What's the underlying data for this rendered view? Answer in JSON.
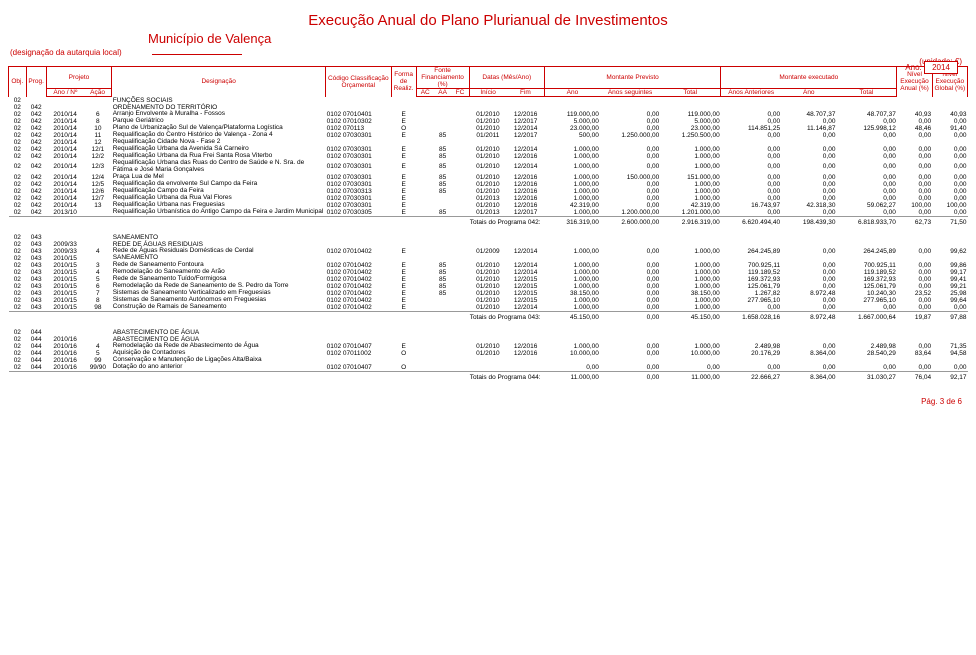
{
  "header": {
    "title": "Execução Anual do Plano Plurianual de Investimentos",
    "municipio": "Município de Valença",
    "designacao_label": "(designação da autarquia local)",
    "ano_label": "Ano:",
    "ano_value": "2014",
    "unidade": "(unidade: €)"
  },
  "columns": {
    "obj": "Obj.",
    "prog": "Prog.",
    "projeto": "Projeto",
    "ano_no": "Ano / Nº",
    "acao": "Ação",
    "designacao": "Designação",
    "codigo": "Código Classificação Orçamental",
    "forma": "Forma de Realiz.",
    "fonte": "Fonte Financiamento (%)",
    "ac": "AC",
    "aa": "AA",
    "fc": "FC",
    "datas": "Datas (Mês/Ano)",
    "inicio": "Início",
    "fim": "Fim",
    "montante_prev": "Montante Previsto",
    "mp_ano": "Ano",
    "mp_seg": "Anos seguintes",
    "mp_total": "Total",
    "montante_exec": "Montante executado",
    "me_ant": "Anos Anteriores",
    "me_ano": "Ano",
    "me_total": "Total",
    "nivel_exec_anual": "Nível Execução Anual (%)",
    "nivel_exec_global": "Nível Execução Global (%)"
  },
  "sections": [
    {
      "header_rows": [
        {
          "obj": "02",
          "prog": "",
          "ano": "",
          "acao": "",
          "des": "FUNÇÕES SOCIAIS"
        },
        {
          "obj": "02",
          "prog": "042",
          "ano": "",
          "acao": "",
          "des": "ORDENAMENTO DO TERRITÓRIO"
        }
      ],
      "rows": [
        {
          "obj": "02",
          "prog": "042",
          "ano": "2010/14",
          "acao": "6",
          "des": "Arranjo Envolvente à Muralha - Fossos",
          "cod": "0102 07010401",
          "forma": "E",
          "ac": "",
          "aa": "",
          "fc": "",
          "ini": "01/2010",
          "fim": "12/2016",
          "p_ano": "119.000,00",
          "p_seg": "0,00",
          "p_tot": "119.000,00",
          "e_ant": "0,00",
          "e_ano": "48.707,37",
          "e_tot": "48.707,37",
          "na": "40,93",
          "ng": "40,93"
        },
        {
          "obj": "02",
          "prog": "042",
          "ano": "2010/14",
          "acao": "8",
          "des": "Parque Geriátrico",
          "cod": "0102 07010302",
          "forma": "E",
          "ac": "",
          "aa": "",
          "fc": "",
          "ini": "01/2010",
          "fim": "12/2017",
          "p_ano": "5.000,00",
          "p_seg": "0,00",
          "p_tot": "5.000,00",
          "e_ant": "0,00",
          "e_ano": "0,00",
          "e_tot": "0,00",
          "na": "0,00",
          "ng": "0,00"
        },
        {
          "obj": "02",
          "prog": "042",
          "ano": "2010/14",
          "acao": "10",
          "des": "Plano de Urbanização Sul de Valença/Plataforma Logística",
          "cod": "0102 070113",
          "forma": "O",
          "ac": "",
          "aa": "",
          "fc": "",
          "ini": "01/2010",
          "fim": "12/2014",
          "p_ano": "23.000,00",
          "p_seg": "0,00",
          "p_tot": "23.000,00",
          "e_ant": "114.851,25",
          "e_ano": "11.146,87",
          "e_tot": "125.998,12",
          "na": "48,46",
          "ng": "91,40"
        },
        {
          "obj": "02",
          "prog": "042",
          "ano": "2010/14",
          "acao": "11",
          "des": "Requalificação do Centro Histórico de Valença - Zona 4",
          "cod": "0102 07030301",
          "forma": "E",
          "ac": "",
          "aa": "85",
          "fc": "",
          "ini": "01/2011",
          "fim": "12/2017",
          "p_ano": "500,00",
          "p_seg": "1.250.000,00",
          "p_tot": "1.250.500,00",
          "e_ant": "0,00",
          "e_ano": "0,00",
          "e_tot": "0,00",
          "na": "0,00",
          "ng": "0,00"
        },
        {
          "obj": "02",
          "prog": "042",
          "ano": "2010/14",
          "acao": "12",
          "des": "Requalificação Cidade Nova - Fase 2",
          "cod": "",
          "forma": "",
          "ac": "",
          "aa": "",
          "fc": "",
          "ini": "",
          "fim": "",
          "p_ano": "",
          "p_seg": "",
          "p_tot": "",
          "e_ant": "",
          "e_ano": "",
          "e_tot": "",
          "na": "",
          "ng": ""
        },
        {
          "obj": "02",
          "prog": "042",
          "ano": "2010/14",
          "acao": "12/1",
          "des": "Requalificação Urbana da Avenida Sá Carneiro",
          "cod": "0102 07030301",
          "forma": "E",
          "ac": "",
          "aa": "85",
          "fc": "",
          "ini": "01/2010",
          "fim": "12/2014",
          "p_ano": "1.000,00",
          "p_seg": "0,00",
          "p_tot": "1.000,00",
          "e_ant": "0,00",
          "e_ano": "0,00",
          "e_tot": "0,00",
          "na": "0,00",
          "ng": "0,00"
        },
        {
          "obj": "02",
          "prog": "042",
          "ano": "2010/14",
          "acao": "12/2",
          "des": "Requalificação Urbana da Rua Frei Santa Rosa Viterbo",
          "cod": "0102 07030301",
          "forma": "E",
          "ac": "",
          "aa": "85",
          "fc": "",
          "ini": "01/2010",
          "fim": "12/2016",
          "p_ano": "1.000,00",
          "p_seg": "0,00",
          "p_tot": "1.000,00",
          "e_ant": "0,00",
          "e_ano": "0,00",
          "e_tot": "0,00",
          "na": "0,00",
          "ng": "0,00"
        },
        {
          "obj": "02",
          "prog": "042",
          "ano": "2010/14",
          "acao": "12/3",
          "des": "Requalificação Urbana das Ruas do Centro de Saúde e N. Sra. de Fátima e José Maria Gonçalves",
          "cod": "0102 07030301",
          "forma": "E",
          "ac": "",
          "aa": "85",
          "fc": "",
          "ini": "01/2010",
          "fim": "12/2014",
          "p_ano": "1.000,00",
          "p_seg": "0,00",
          "p_tot": "1.000,00",
          "e_ant": "0,00",
          "e_ano": "0,00",
          "e_tot": "0,00",
          "na": "0,00",
          "ng": "0,00"
        },
        {
          "obj": "02",
          "prog": "042",
          "ano": "2010/14",
          "acao": "12/4",
          "des": "Praça Lua de Mel",
          "cod": "0102 07030301",
          "forma": "E",
          "ac": "",
          "aa": "85",
          "fc": "",
          "ini": "01/2010",
          "fim": "12/2016",
          "p_ano": "1.000,00",
          "p_seg": "150.000,00",
          "p_tot": "151.000,00",
          "e_ant": "0,00",
          "e_ano": "0,00",
          "e_tot": "0,00",
          "na": "0,00",
          "ng": "0,00"
        },
        {
          "obj": "02",
          "prog": "042",
          "ano": "2010/14",
          "acao": "12/5",
          "des": "Requalificação da envolvente Sul Campo da Feira",
          "cod": "0102 07030301",
          "forma": "E",
          "ac": "",
          "aa": "85",
          "fc": "",
          "ini": "01/2010",
          "fim": "12/2016",
          "p_ano": "1.000,00",
          "p_seg": "0,00",
          "p_tot": "1.000,00",
          "e_ant": "0,00",
          "e_ano": "0,00",
          "e_tot": "0,00",
          "na": "0,00",
          "ng": "0,00"
        },
        {
          "obj": "02",
          "prog": "042",
          "ano": "2010/14",
          "acao": "12/6",
          "des": "Requalificação Campo da Feira",
          "cod": "0102 07030313",
          "forma": "E",
          "ac": "",
          "aa": "85",
          "fc": "",
          "ini": "01/2010",
          "fim": "12/2016",
          "p_ano": "1.000,00",
          "p_seg": "0,00",
          "p_tot": "1.000,00",
          "e_ant": "0,00",
          "e_ano": "0,00",
          "e_tot": "0,00",
          "na": "0,00",
          "ng": "0,00"
        },
        {
          "obj": "02",
          "prog": "042",
          "ano": "2010/14",
          "acao": "12/7",
          "des": "Requalificação Urbana da Rua Val Flores",
          "cod": "0102 07030301",
          "forma": "E",
          "ac": "",
          "aa": "",
          "fc": "",
          "ini": "01/2013",
          "fim": "12/2016",
          "p_ano": "1.000,00",
          "p_seg": "0,00",
          "p_tot": "1.000,00",
          "e_ant": "0,00",
          "e_ano": "0,00",
          "e_tot": "0,00",
          "na": "0,00",
          "ng": "0,00"
        },
        {
          "obj": "02",
          "prog": "042",
          "ano": "2010/14",
          "acao": "13",
          "des": "Requalificação Urbana nas Freguesias",
          "cod": "0102 07030301",
          "forma": "E",
          "ac": "",
          "aa": "",
          "fc": "",
          "ini": "01/2010",
          "fim": "12/2016",
          "p_ano": "42.319,00",
          "p_seg": "0,00",
          "p_tot": "42.319,00",
          "e_ant": "16.743,97",
          "e_ano": "42.318,30",
          "e_tot": "59.062,27",
          "na": "100,00",
          "ng": "100,00"
        },
        {
          "obj": "02",
          "prog": "042",
          "ano": "2013/10",
          "acao": "",
          "des": "Requalificação Urbanística do Antigo Campo da Feira e Jardim Municipal",
          "cod": "0102 07030305",
          "forma": "E",
          "ac": "",
          "aa": "85",
          "fc": "",
          "ini": "01/2013",
          "fim": "12/2017",
          "p_ano": "1.000,00",
          "p_seg": "1.200.000,00",
          "p_tot": "1.201.000,00",
          "e_ant": "0,00",
          "e_ano": "0,00",
          "e_tot": "0,00",
          "na": "0,00",
          "ng": "0,00"
        }
      ],
      "total": {
        "label": "Totais do Programa 042:",
        "p_ano": "316.319,00",
        "p_seg": "2.600.000,00",
        "p_tot": "2.916.319,00",
        "e_ant": "6.620.494,40",
        "e_ano": "198.439,30",
        "e_tot": "6.818.933,70",
        "na": "62,73",
        "ng": "71,50"
      }
    },
    {
      "header_rows": [
        {
          "obj": "02",
          "prog": "043",
          "ano": "",
          "acao": "",
          "des": "SANEAMENTO"
        },
        {
          "obj": "02",
          "prog": "043",
          "ano": "2009/33",
          "acao": "",
          "des": "REDE DE ÁGUAS RESIDUAIS"
        }
      ],
      "rows": [
        {
          "obj": "02",
          "prog": "043",
          "ano": "2009/33",
          "acao": "4",
          "des": "Rede de Águas Residuais Domésticas de Cerdal",
          "cod": "0102 07010402",
          "forma": "E",
          "ac": "",
          "aa": "",
          "fc": "",
          "ini": "01/2009",
          "fim": "12/2014",
          "p_ano": "1.000,00",
          "p_seg": "0,00",
          "p_tot": "1.000,00",
          "e_ant": "264.245,89",
          "e_ano": "0,00",
          "e_tot": "264.245,89",
          "na": "0,00",
          "ng": "99,62"
        },
        {
          "obj": "02",
          "prog": "043",
          "ano": "2010/15",
          "acao": "",
          "des": "SANEAMENTO",
          "cod": "",
          "forma": "",
          "ac": "",
          "aa": "",
          "fc": "",
          "ini": "",
          "fim": "",
          "p_ano": "",
          "p_seg": "",
          "p_tot": "",
          "e_ant": "",
          "e_ano": "",
          "e_tot": "",
          "na": "",
          "ng": ""
        },
        {
          "obj": "02",
          "prog": "043",
          "ano": "2010/15",
          "acao": "3",
          "des": "Rede de Saneamento Fontoura",
          "cod": "0102 07010402",
          "forma": "E",
          "ac": "",
          "aa": "85",
          "fc": "",
          "ini": "01/2010",
          "fim": "12/2014",
          "p_ano": "1.000,00",
          "p_seg": "0,00",
          "p_tot": "1.000,00",
          "e_ant": "700.925,11",
          "e_ano": "0,00",
          "e_tot": "700.925,11",
          "na": "0,00",
          "ng": "99,86"
        },
        {
          "obj": "02",
          "prog": "043",
          "ano": "2010/15",
          "acao": "4",
          "des": "Remodelação do Saneamento de Arão",
          "cod": "0102 07010402",
          "forma": "E",
          "ac": "",
          "aa": "85",
          "fc": "",
          "ini": "01/2010",
          "fim": "12/2014",
          "p_ano": "1.000,00",
          "p_seg": "0,00",
          "p_tot": "1.000,00",
          "e_ant": "119.189,52",
          "e_ano": "0,00",
          "e_tot": "119.189,52",
          "na": "0,00",
          "ng": "99,17"
        },
        {
          "obj": "02",
          "prog": "043",
          "ano": "2010/15",
          "acao": "5",
          "des": "Rede de Saneamento Tuído/Formigosa",
          "cod": "0102 07010402",
          "forma": "E",
          "ac": "",
          "aa": "85",
          "fc": "",
          "ini": "01/2010",
          "fim": "12/2015",
          "p_ano": "1.000,00",
          "p_seg": "0,00",
          "p_tot": "1.000,00",
          "e_ant": "169.372,93",
          "e_ano": "0,00",
          "e_tot": "169.372,93",
          "na": "0,00",
          "ng": "99,41"
        },
        {
          "obj": "02",
          "prog": "043",
          "ano": "2010/15",
          "acao": "6",
          "des": "Remodelação da Rede de Saneamento de S. Pedro da Torre",
          "cod": "0102 07010402",
          "forma": "E",
          "ac": "",
          "aa": "85",
          "fc": "",
          "ini": "01/2010",
          "fim": "12/2015",
          "p_ano": "1.000,00",
          "p_seg": "0,00",
          "p_tot": "1.000,00",
          "e_ant": "125.061,79",
          "e_ano": "0,00",
          "e_tot": "125.061,79",
          "na": "0,00",
          "ng": "99,21"
        },
        {
          "obj": "02",
          "prog": "043",
          "ano": "2010/15",
          "acao": "7",
          "des": "Sistemas de Saneamento Verticalizado em Freguesias",
          "cod": "0102 07010402",
          "forma": "E",
          "ac": "",
          "aa": "85",
          "fc": "",
          "ini": "01/2010",
          "fim": "12/2015",
          "p_ano": "38.150,00",
          "p_seg": "0,00",
          "p_tot": "38.150,00",
          "e_ant": "1.267,82",
          "e_ano": "8.972,48",
          "e_tot": "10.240,30",
          "na": "23,52",
          "ng": "25,98"
        },
        {
          "obj": "02",
          "prog": "043",
          "ano": "2010/15",
          "acao": "8",
          "des": "Sistemas de Saneamento Autónomos em Freguesias",
          "cod": "0102 07010402",
          "forma": "E",
          "ac": "",
          "aa": "",
          "fc": "",
          "ini": "01/2010",
          "fim": "12/2015",
          "p_ano": "1.000,00",
          "p_seg": "0,00",
          "p_tot": "1.000,00",
          "e_ant": "277.965,10",
          "e_ano": "0,00",
          "e_tot": "277.965,10",
          "na": "0,00",
          "ng": "99,64"
        },
        {
          "obj": "02",
          "prog": "043",
          "ano": "2010/15",
          "acao": "98",
          "des": "Construção de Ramais de Saneamento",
          "cod": "0102 07010402",
          "forma": "E",
          "ac": "",
          "aa": "",
          "fc": "",
          "ini": "01/2010",
          "fim": "12/2014",
          "p_ano": "1.000,00",
          "p_seg": "0,00",
          "p_tot": "1.000,00",
          "e_ant": "0,00",
          "e_ano": "0,00",
          "e_tot": "0,00",
          "na": "0,00",
          "ng": "0,00"
        }
      ],
      "total": {
        "label": "Totais do Programa 043:",
        "p_ano": "45.150,00",
        "p_seg": "0,00",
        "p_tot": "45.150,00",
        "e_ant": "1.658.028,16",
        "e_ano": "8.972,48",
        "e_tot": "1.667.000,64",
        "na": "19,87",
        "ng": "97,88"
      }
    },
    {
      "header_rows": [
        {
          "obj": "02",
          "prog": "044",
          "ano": "",
          "acao": "",
          "des": "ABASTECIMENTO DE ÁGUA"
        },
        {
          "obj": "02",
          "prog": "044",
          "ano": "2010/16",
          "acao": "",
          "des": "ABASTECIMENTO DE ÁGUA"
        }
      ],
      "rows": [
        {
          "obj": "02",
          "prog": "044",
          "ano": "2010/16",
          "acao": "4",
          "des": "Remodelação da Rede de Abastecimento de Água",
          "cod": "0102 07010407",
          "forma": "E",
          "ac": "",
          "aa": "",
          "fc": "",
          "ini": "01/2010",
          "fim": "12/2016",
          "p_ano": "1.000,00",
          "p_seg": "0,00",
          "p_tot": "1.000,00",
          "e_ant": "2.489,98",
          "e_ano": "0,00",
          "e_tot": "2.489,98",
          "na": "0,00",
          "ng": "71,35"
        },
        {
          "obj": "02",
          "prog": "044",
          "ano": "2010/16",
          "acao": "5",
          "des": "Aquisição de Contadores",
          "cod": "0102 07011002",
          "forma": "O",
          "ac": "",
          "aa": "",
          "fc": "",
          "ini": "01/2010",
          "fim": "12/2016",
          "p_ano": "10.000,00",
          "p_seg": "0,00",
          "p_tot": "10.000,00",
          "e_ant": "20.176,29",
          "e_ano": "8.364,00",
          "e_tot": "28.540,29",
          "na": "83,64",
          "ng": "94,58"
        },
        {
          "obj": "02",
          "prog": "044",
          "ano": "2010/16",
          "acao": "99",
          "des": "Conservação e Manutenção de Ligações Alta/Baixa",
          "cod": "",
          "forma": "",
          "ac": "",
          "aa": "",
          "fc": "",
          "ini": "",
          "fim": "",
          "p_ano": "",
          "p_seg": "",
          "p_tot": "",
          "e_ant": "",
          "e_ano": "",
          "e_tot": "",
          "na": "",
          "ng": ""
        },
        {
          "obj": "02",
          "prog": "044",
          "ano": "2010/16",
          "acao": "99/90",
          "des": "Dotação do ano anterior",
          "cod": "0102 07010407",
          "forma": "O",
          "ac": "",
          "aa": "",
          "fc": "",
          "ini": "",
          "fim": "",
          "p_ano": "0,00",
          "p_seg": "0,00",
          "p_tot": "0,00",
          "e_ant": "0,00",
          "e_ano": "0,00",
          "e_tot": "0,00",
          "na": "0,00",
          "ng": "0,00"
        }
      ],
      "total": {
        "label": "Totais do Programa 044:",
        "p_ano": "11.000,00",
        "p_seg": "0,00",
        "p_tot": "11.000,00",
        "e_ant": "22.666,27",
        "e_ano": "8.364,00",
        "e_tot": "31.030,27",
        "na": "76,04",
        "ng": "92,17"
      }
    }
  ],
  "footer": {
    "page": "Pág. 3 de 6"
  }
}
